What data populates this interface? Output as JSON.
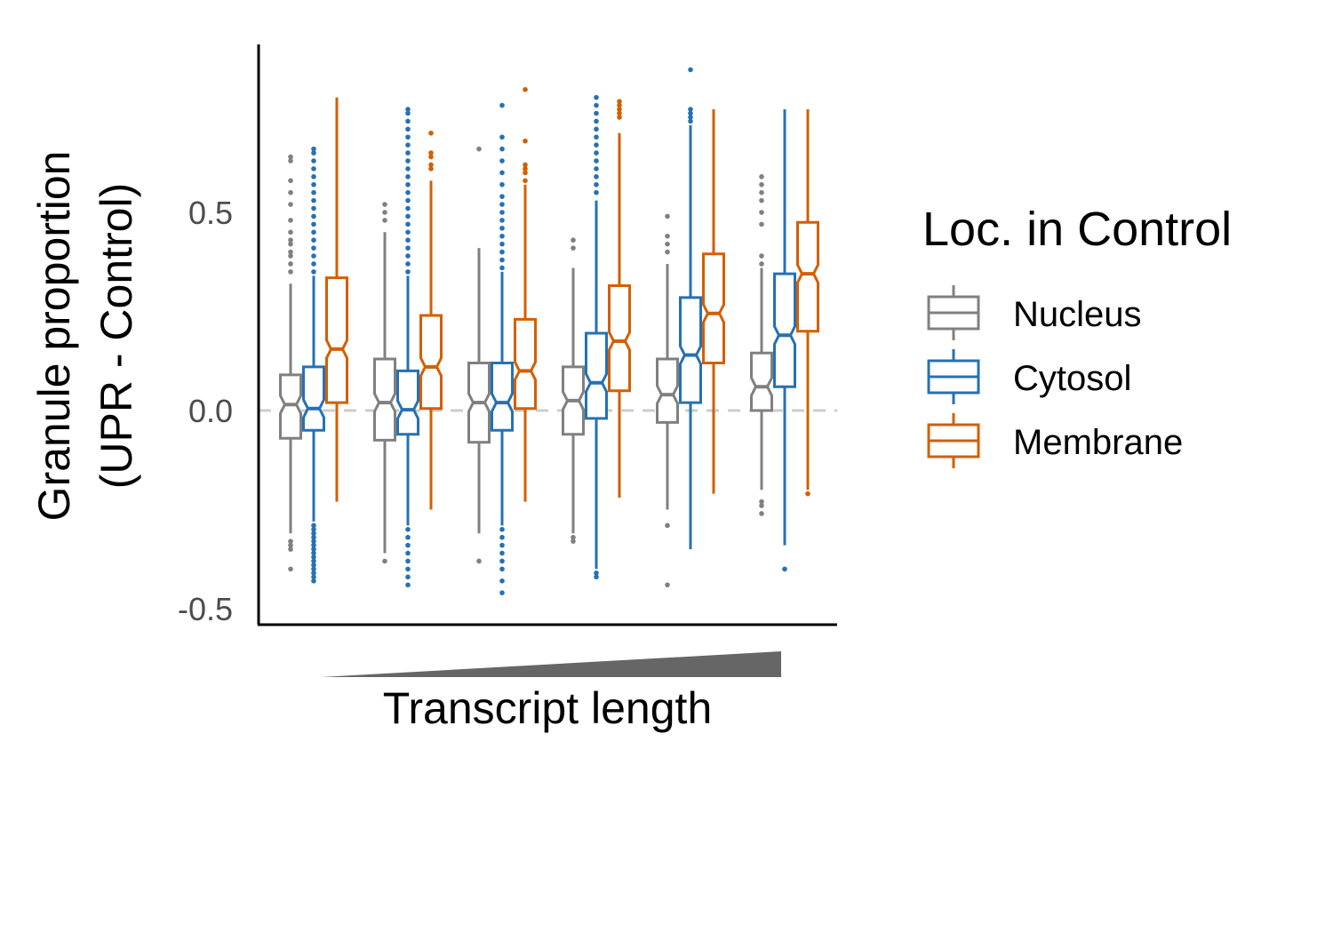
{
  "chart_data": {
    "type": "box",
    "ylabel_line1": "Granule proportion",
    "ylabel_line2": "(UPR - Control)",
    "xlabel": "Transcript length",
    "y_ticks": [
      "-0.5",
      "0.0",
      "0.5"
    ],
    "y_tick_values": [
      -0.5,
      0.0,
      0.5
    ],
    "ylim": [
      -0.52,
      0.91
    ],
    "reference_line": 0.0,
    "x_groups": 6,
    "x_order": "increasing transcript length (wedge)",
    "legend": {
      "title": "Loc. in Control",
      "placement": "right"
    },
    "series": [
      {
        "name": "Nucleus",
        "color": "#808080",
        "boxes": [
          {
            "whisker_low": -0.31,
            "q1": -0.07,
            "median": 0.015,
            "q3": 0.09,
            "whisker_high": 0.32,
            "outliers": [
              -0.4,
              -0.35,
              -0.34,
              -0.33,
              0.35,
              0.37,
              0.39,
              0.4,
              0.42,
              0.43,
              0.45,
              0.48,
              0.52,
              0.55,
              0.58,
              0.63,
              0.64
            ]
          },
          {
            "whisker_low": -0.36,
            "q1": -0.075,
            "median": 0.02,
            "q3": 0.13,
            "whisker_high": 0.45,
            "outliers": [
              -0.38,
              0.48,
              0.5,
              0.52
            ]
          },
          {
            "whisker_low": -0.31,
            "q1": -0.08,
            "median": 0.02,
            "q3": 0.12,
            "whisker_high": 0.41,
            "outliers": [
              -0.38,
              0.66
            ]
          },
          {
            "whisker_low": -0.31,
            "q1": -0.06,
            "median": 0.025,
            "q3": 0.11,
            "whisker_high": 0.36,
            "outliers": [
              -0.33,
              -0.32,
              0.41,
              0.43
            ]
          },
          {
            "whisker_low": -0.25,
            "q1": -0.03,
            "median": 0.04,
            "q3": 0.13,
            "whisker_high": 0.37,
            "outliers": [
              -0.44,
              -0.29,
              0.4,
              0.42,
              0.44,
              0.49
            ]
          },
          {
            "whisker_low": -0.2,
            "q1": 0.0,
            "median": 0.06,
            "q3": 0.145,
            "whisker_high": 0.36,
            "outliers": [
              -0.26,
              -0.24,
              -0.23,
              0.37,
              0.39,
              0.47,
              0.5,
              0.53,
              0.55,
              0.57,
              0.59
            ]
          }
        ]
      },
      {
        "name": "Cytosol",
        "color": "#2671b3",
        "boxes": [
          {
            "whisker_low": -0.28,
            "q1": -0.05,
            "median": 0.005,
            "q3": 0.11,
            "whisker_high": 0.34,
            "outliers": [
              -0.43,
              -0.42,
              -0.41,
              -0.4,
              -0.39,
              -0.38,
              -0.37,
              -0.36,
              -0.35,
              -0.34,
              -0.33,
              -0.32,
              -0.31,
              -0.3,
              -0.29,
              0.35,
              0.37,
              0.39,
              0.41,
              0.43,
              0.45,
              0.47,
              0.49,
              0.51,
              0.53,
              0.55,
              0.57,
              0.59,
              0.61,
              0.63,
              0.65,
              0.66
            ]
          },
          {
            "whisker_low": -0.29,
            "q1": -0.06,
            "median": 0.002,
            "q3": 0.1,
            "whisker_high": 0.34,
            "outliers": [
              -0.44,
              -0.42,
              -0.4,
              -0.38,
              -0.36,
              -0.34,
              -0.32,
              -0.3,
              0.35,
              0.37,
              0.39,
              0.41,
              0.43,
              0.45,
              0.47,
              0.49,
              0.51,
              0.53,
              0.55,
              0.57,
              0.59,
              0.61,
              0.63,
              0.65,
              0.67,
              0.69,
              0.71,
              0.73,
              0.75,
              0.76
            ]
          },
          {
            "whisker_low": -0.29,
            "q1": -0.05,
            "median": 0.02,
            "q3": 0.12,
            "whisker_high": 0.35,
            "outliers": [
              -0.46,
              -0.43,
              -0.4,
              -0.38,
              -0.36,
              -0.34,
              -0.32,
              -0.3,
              0.36,
              0.38,
              0.4,
              0.42,
              0.44,
              0.46,
              0.48,
              0.5,
              0.52,
              0.54,
              0.57,
              0.6,
              0.63,
              0.66,
              0.69,
              0.77
            ]
          },
          {
            "whisker_low": -0.4,
            "q1": -0.02,
            "median": 0.07,
            "q3": 0.195,
            "whisker_high": 0.53,
            "outliers": [
              -0.42,
              -0.41,
              0.55,
              0.57,
              0.59,
              0.61,
              0.63,
              0.65,
              0.67,
              0.69,
              0.71,
              0.73,
              0.75,
              0.77,
              0.79
            ]
          },
          {
            "whisker_low": -0.35,
            "q1": 0.02,
            "median": 0.14,
            "q3": 0.285,
            "whisker_high": 0.72,
            "outliers": [
              0.73,
              0.74,
              0.75,
              0.76,
              0.86
            ]
          },
          {
            "whisker_low": -0.34,
            "q1": 0.06,
            "median": 0.19,
            "q3": 0.345,
            "whisker_high": 0.76,
            "outliers": [
              -0.4
            ]
          }
        ]
      },
      {
        "name": "Membrane",
        "color": "#d35f00",
        "boxes": [
          {
            "whisker_low": -0.23,
            "q1": 0.02,
            "median": 0.155,
            "q3": 0.335,
            "whisker_high": 0.79,
            "outliers": []
          },
          {
            "whisker_low": -0.25,
            "q1": 0.005,
            "median": 0.11,
            "q3": 0.24,
            "whisker_high": 0.58,
            "outliers": [
              0.61,
              0.62,
              0.64,
              0.65,
              0.7
            ]
          },
          {
            "whisker_low": -0.23,
            "q1": 0.005,
            "median": 0.1,
            "q3": 0.23,
            "whisker_high": 0.57,
            "outliers": [
              0.58,
              0.6,
              0.61,
              0.62,
              0.68,
              0.81
            ]
          },
          {
            "whisker_low": -0.22,
            "q1": 0.05,
            "median": 0.175,
            "q3": 0.315,
            "whisker_high": 0.7,
            "outliers": [
              0.74,
              0.75,
              0.76,
              0.77,
              0.78
            ]
          },
          {
            "whisker_low": -0.21,
            "q1": 0.12,
            "median": 0.245,
            "q3": 0.395,
            "whisker_high": 0.76,
            "outliers": []
          },
          {
            "whisker_low": -0.2,
            "q1": 0.2,
            "median": 0.345,
            "q3": 0.475,
            "whisker_high": 0.76,
            "outliers": [
              -0.21
            ]
          }
        ]
      }
    ]
  }
}
